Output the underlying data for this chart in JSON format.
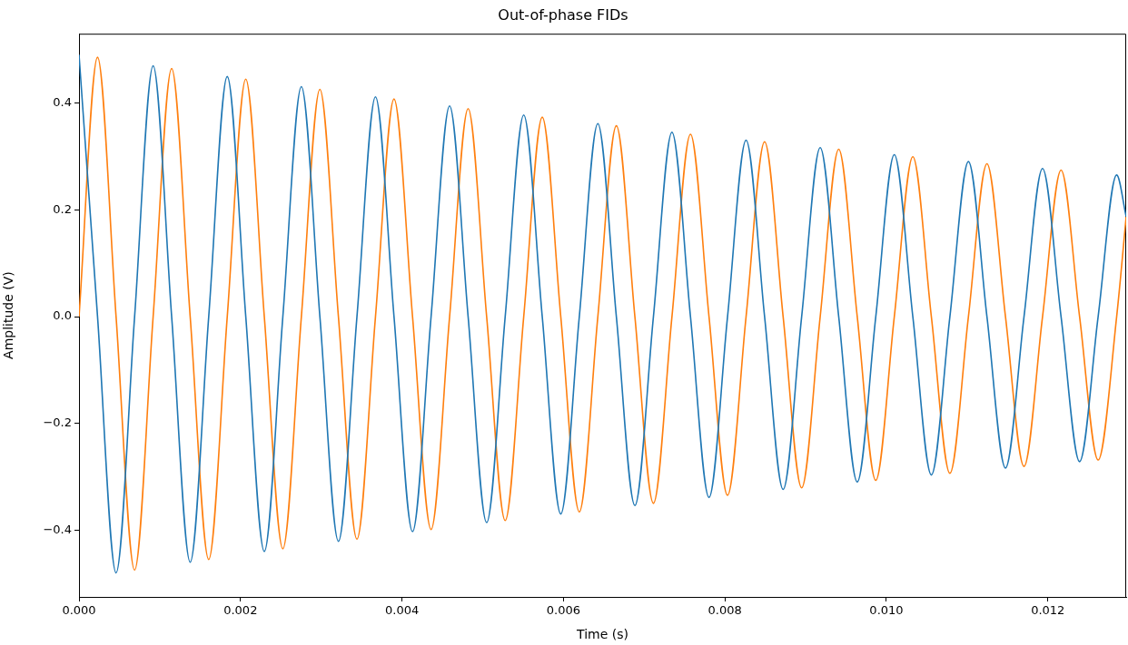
{
  "chart_data": {
    "type": "line",
    "title": "Out-of-phase FIDs",
    "xlabel": "Time (s)",
    "ylabel": "Amplitude (V)",
    "x": [
      0,
      0.0002295,
      0.000459,
      0.0006885,
      0.000918,
      0.0011475,
      0.001377,
      0.0016065,
      0.001836,
      0.0020655,
      0.002295,
      0.0025245,
      0.002754,
      0.0029835,
      0.003213,
      0.0034425,
      0.003672,
      0.0039015,
      0.004131,
      0.0043605,
      0.00459,
      0.0048195,
      0.005049,
      0.0052785,
      0.005508,
      0.0057375,
      0.005967,
      0.0061965,
      0.006426,
      0.0066555,
      0.006885,
      0.0071145,
      0.007344,
      0.0075735,
      0.007803,
      0.0080325,
      0.008262,
      0.0084915,
      0.008721,
      0.0089505,
      0.00918,
      0.0094095,
      0.009639,
      0.0098685,
      0.010098,
      0.0103275,
      0.010557,
      0.0107865,
      0.011016,
      0.0112455,
      0.011475,
      0.0117045,
      0.011934,
      0.0121635,
      0.012393,
      0.0126225,
      0.012852,
      0.01297
    ],
    "series": [
      {
        "color": "#1f77b4",
        "values": [
          0.49,
          0,
          -0.479,
          0,
          0.469,
          0,
          -0.459,
          0,
          0.449,
          0,
          -0.439,
          0,
          0.43,
          0,
          -0.42,
          0,
          0.411,
          0,
          -0.402,
          0,
          0.394,
          0,
          -0.385,
          0,
          0.377,
          0,
          -0.369,
          0,
          0.361,
          0,
          -0.353,
          0,
          0.345,
          0,
          -0.338,
          0,
          0.33,
          0,
          -0.323,
          0,
          0.316,
          0,
          -0.309,
          0,
          0.303,
          0,
          -0.296,
          0,
          0.29,
          0,
          -0.283,
          0,
          0.277,
          0,
          -0.271,
          0,
          0.265,
          0.187
        ]
      },
      {
        "color": "#ff7f0e",
        "values": [
          0,
          0.485,
          0,
          -0.474,
          0,
          0.464,
          0,
          -0.454,
          0,
          0.444,
          0,
          -0.434,
          0,
          0.425,
          0,
          -0.416,
          0,
          0.407,
          0,
          -0.398,
          0,
          0.389,
          0,
          -0.381,
          0,
          0.373,
          0,
          -0.365,
          0,
          0.357,
          0,
          -0.349,
          0,
          0.341,
          0,
          -0.334,
          0,
          0.327,
          0,
          -0.32,
          0,
          0.313,
          0,
          -0.306,
          0,
          0.299,
          0,
          -0.293,
          0,
          0.286,
          0,
          -0.28,
          0,
          0.274,
          0,
          -0.268,
          0,
          0.187
        ]
      }
    ],
    "xlim": [
      0,
      0.01297
    ],
    "xticks": [
      {
        "value": 0,
        "label": "0.000"
      },
      {
        "value": 0.002,
        "label": "0.002"
      },
      {
        "value": 0.004,
        "label": "0.004"
      },
      {
        "value": 0.006,
        "label": "0.006"
      },
      {
        "value": 0.008,
        "label": "0.008"
      },
      {
        "value": 0.01,
        "label": "0.010"
      },
      {
        "value": 0.012,
        "label": "0.012"
      }
    ],
    "ylim": [
      -0.524,
      0.529
    ],
    "yticks": [
      {
        "value": -0.4,
        "label": "−0.4"
      },
      {
        "value": -0.2,
        "label": "−0.2"
      },
      {
        "value": 0,
        "label": "0.0"
      },
      {
        "value": 0.2,
        "label": "0.2"
      },
      {
        "value": 0.4,
        "label": "0.4"
      }
    ],
    "grid": false,
    "legend": false,
    "marker": "none",
    "line_style": "solid"
  }
}
